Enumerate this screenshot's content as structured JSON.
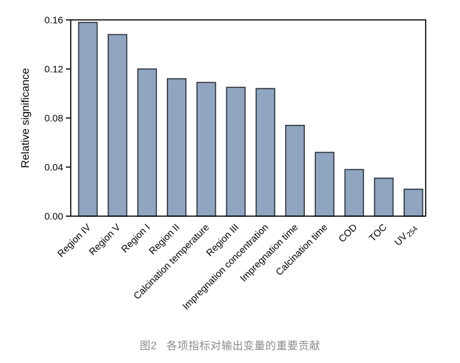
{
  "figure": {
    "caption": {
      "label": "图2",
      "text": "各项指标对输出变量的重要贡献",
      "color": "#8a8a8a"
    }
  },
  "chart_data": {
    "type": "bar",
    "title": "",
    "xlabel": "",
    "ylabel": "Relative significance",
    "ylim": [
      0,
      0.16
    ],
    "ytick_labels": [
      "0.00",
      "0.04",
      "0.08",
      "0.12",
      "0.16"
    ],
    "grid": false,
    "legend": "none",
    "bar_fill": "#8fa5c0",
    "bar_stroke": "#262b36",
    "axis_color": "#000000",
    "categories": [
      {
        "label": "Region IV",
        "sub": ""
      },
      {
        "label": "Region V",
        "sub": ""
      },
      {
        "label": "Region I",
        "sub": ""
      },
      {
        "label": "Region II",
        "sub": ""
      },
      {
        "label": "Calcination temperature",
        "sub": ""
      },
      {
        "label": "Region III",
        "sub": ""
      },
      {
        "label": "Impregnation concentration",
        "sub": ""
      },
      {
        "label": "Impregnation time",
        "sub": ""
      },
      {
        "label": "Calcination time",
        "sub": ""
      },
      {
        "label": "COD",
        "sub": ""
      },
      {
        "label": "TOC",
        "sub": ""
      },
      {
        "label": "UV",
        "sub": "254"
      }
    ],
    "values": [
      0.158,
      0.148,
      0.12,
      0.112,
      0.109,
      0.105,
      0.104,
      0.074,
      0.052,
      0.038,
      0.031,
      0.022
    ]
  }
}
